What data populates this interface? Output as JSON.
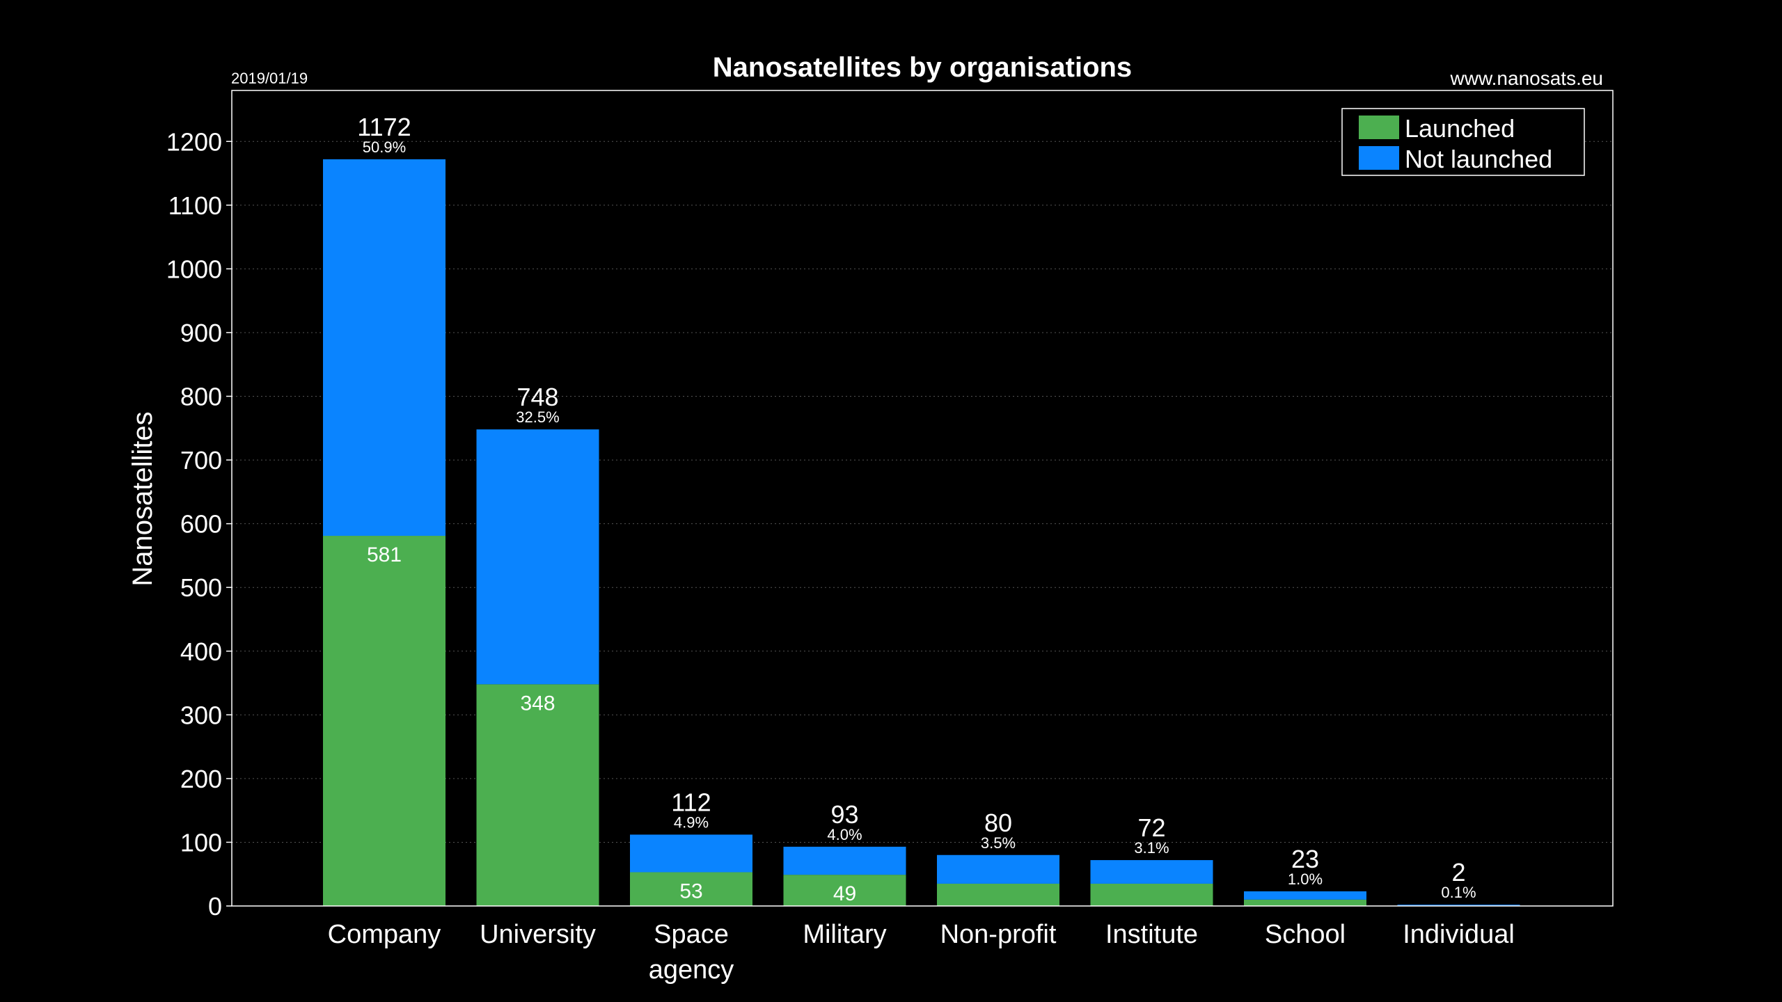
{
  "chart_data": {
    "type": "bar",
    "stacked": true,
    "title": "Nanosatellites by organisations",
    "date": "2019/01/19",
    "source": "www.nanosats.eu",
    "ylabel": "Nanosatellites",
    "xlabel": "",
    "ylim": [
      0,
      1280
    ],
    "yticks": [
      0,
      100,
      200,
      300,
      400,
      500,
      600,
      700,
      800,
      900,
      1000,
      1100,
      1200
    ],
    "grid": true,
    "legend_position": "top-right",
    "categories": [
      [
        "Company"
      ],
      [
        "University"
      ],
      [
        "Space",
        "agency"
      ],
      [
        "Military"
      ],
      [
        "Non-profit"
      ],
      [
        "Institute"
      ],
      [
        "School"
      ],
      [
        "Individual"
      ]
    ],
    "series": [
      {
        "name": "Launched",
        "color": "#4caf50",
        "values": [
          581,
          348,
          53,
          49,
          35,
          35,
          10,
          0
        ]
      },
      {
        "name": "Not launched",
        "color": "#0a84ff",
        "values": [
          591,
          400,
          59,
          44,
          45,
          37,
          13,
          2
        ]
      }
    ],
    "totals": [
      1172,
      748,
      112,
      93,
      80,
      72,
      23,
      2
    ],
    "percentages": [
      "50.9%",
      "32.5%",
      "4.9%",
      "4.0%",
      "3.5%",
      "3.1%",
      "1.0%",
      "0.1%"
    ],
    "launched_labels": [
      "581",
      "348",
      "53",
      "49",
      "",
      "",
      "",
      ""
    ]
  }
}
